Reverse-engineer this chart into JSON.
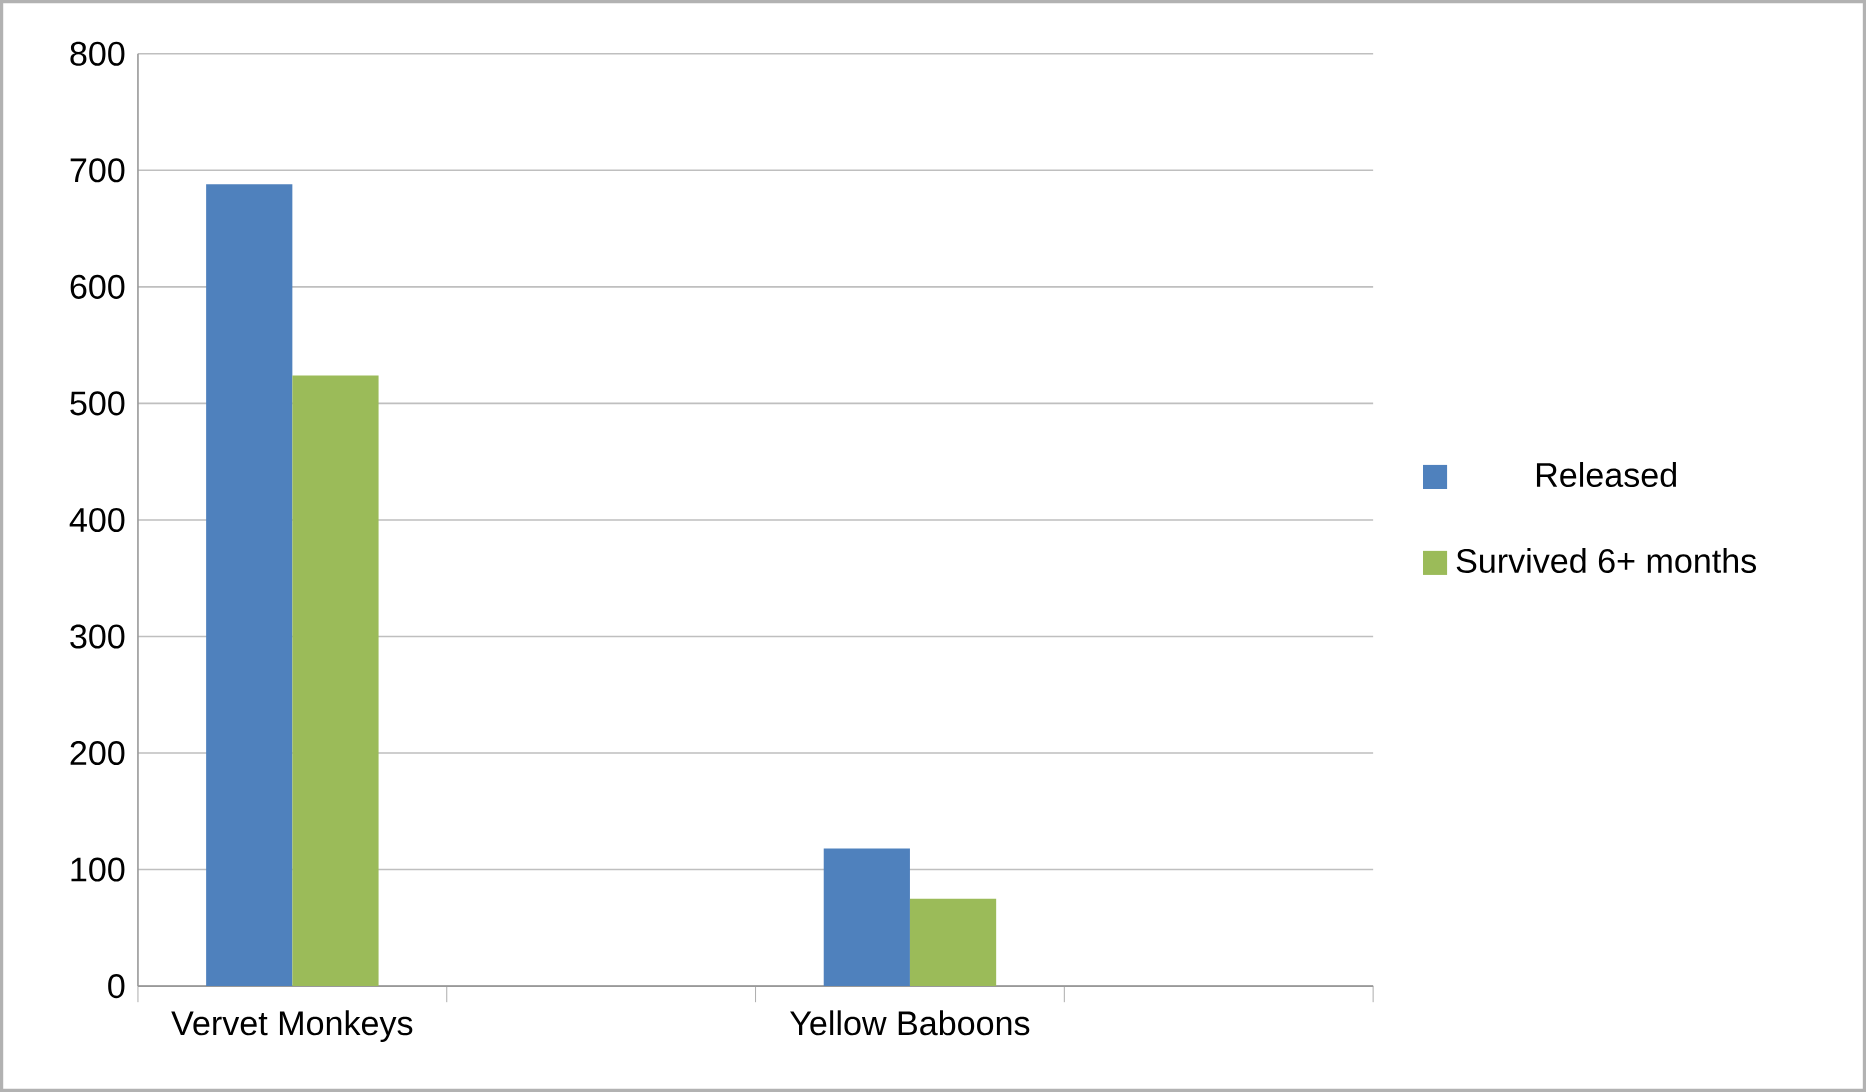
{
  "chart_data": {
    "type": "bar",
    "categories": [
      "Vervet Monkeys",
      null,
      "Yellow Baboons",
      null
    ],
    "series": [
      {
        "name": "Released",
        "color": "#4f81bd",
        "values": [
          688,
          null,
          118,
          null
        ]
      },
      {
        "name": "Survived 6+ months",
        "color": "#9bbb59",
        "values": [
          524,
          null,
          75,
          null
        ]
      }
    ],
    "ylim": [
      0,
      800
    ],
    "yticks": [
      0,
      100,
      200,
      300,
      400,
      500,
      600,
      700,
      800
    ],
    "grid": "y",
    "legend": "right"
  }
}
